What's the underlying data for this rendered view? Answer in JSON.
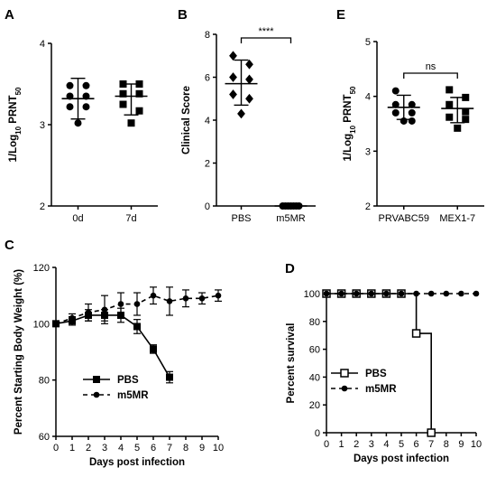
{
  "chart_data": [
    {
      "panel": "A",
      "type": "scatter",
      "categories": [
        "0d",
        "7d"
      ],
      "ylabel": "1/Log10 PRNT50",
      "ylim": [
        2,
        4
      ],
      "yticks": [
        "2",
        "3",
        "4"
      ],
      "series": [
        {
          "category": "0d",
          "values": [
            3.48,
            3.48,
            3.35,
            3.35,
            3.22,
            3.22,
            3.02
          ],
          "mean": 3.32,
          "err_low": 3.07,
          "err_high": 3.57,
          "marker": "circle"
        },
        {
          "category": "7d",
          "values": [
            3.5,
            3.5,
            3.38,
            3.38,
            3.25,
            3.17,
            3.02
          ],
          "mean": 3.35,
          "err_low": 3.12,
          "err_high": 3.5,
          "marker": "square"
        }
      ]
    },
    {
      "panel": "B",
      "type": "scatter",
      "categories": [
        "PBS",
        "m5MR"
      ],
      "ylabel": "Clinical Score",
      "ylim": [
        0,
        8
      ],
      "yticks": [
        "0",
        "2",
        "4",
        "6",
        "8"
      ],
      "significance": "****",
      "series": [
        {
          "category": "PBS",
          "values": [
            7.0,
            6.6,
            6.0,
            5.9,
            5.2,
            5.0,
            4.3
          ],
          "mean": 5.7,
          "err_low": 4.7,
          "err_high": 6.8,
          "marker": "diamond"
        },
        {
          "category": "m5MR",
          "values": [
            0,
            0,
            0,
            0,
            0,
            0,
            0
          ],
          "mean": 0,
          "err_low": 0,
          "err_high": 0,
          "marker": "circle"
        }
      ]
    },
    {
      "panel": "E",
      "type": "scatter",
      "categories": [
        "PRVABC59",
        "MEX1-7"
      ],
      "ylabel": "1/Log10 PRNT50",
      "ylim": [
        2,
        5
      ],
      "yticks": [
        "2",
        "3",
        "4",
        "5"
      ],
      "significance": "ns",
      "series": [
        {
          "category": "PRVABC59",
          "values": [
            4.1,
            3.85,
            3.85,
            3.7,
            3.7,
            3.55,
            3.55
          ],
          "mean": 3.8,
          "err_low": 3.58,
          "err_high": 4.02,
          "marker": "circle"
        },
        {
          "category": "MEX1-7",
          "values": [
            4.12,
            3.98,
            3.85,
            3.72,
            3.62,
            3.58,
            3.42
          ],
          "mean": 3.78,
          "err_low": 3.52,
          "err_high": 3.98,
          "marker": "square"
        }
      ]
    },
    {
      "panel": "C",
      "type": "line",
      "xlabel": "Days post infection",
      "ylabel": "Percent Starting Body Weight (%)",
      "xlim": [
        0,
        10
      ],
      "ylim": [
        60,
        120
      ],
      "xticks": [
        "0",
        "1",
        "2",
        "3",
        "4",
        "5",
        "6",
        "7",
        "8",
        "9",
        "10"
      ],
      "yticks": [
        "60",
        "80",
        "100",
        "120"
      ],
      "legend_position": "bottom-left",
      "series": [
        {
          "name": "PBS",
          "x": [
            0,
            1,
            2,
            3,
            4,
            5,
            6,
            7
          ],
          "values": [
            100,
            101,
            103,
            103,
            103,
            99,
            91,
            81
          ],
          "err": [
            1,
            1.5,
            2,
            2,
            2.5,
            2.5,
            1.5,
            2
          ],
          "style": "solid",
          "marker": "square"
        },
        {
          "name": "m5MR",
          "x": [
            0,
            1,
            2,
            3,
            4,
            5,
            6,
            7,
            8,
            9,
            10
          ],
          "values": [
            100,
            102,
            104,
            105,
            107,
            107,
            110,
            108,
            109,
            109,
            110
          ],
          "err": [
            1,
            1.5,
            3,
            5,
            4,
            4,
            3,
            5,
            3,
            2,
            2
          ],
          "style": "dashed",
          "marker": "circle"
        }
      ]
    },
    {
      "panel": "D",
      "type": "line",
      "xlabel": "Days post infection",
      "ylabel": "Percent survival",
      "xlim": [
        0,
        10
      ],
      "ylim": [
        0,
        100
      ],
      "xticks": [
        "0",
        "1",
        "2",
        "3",
        "4",
        "5",
        "6",
        "7",
        "8",
        "9",
        "10"
      ],
      "yticks": [
        "0",
        "20",
        "40",
        "60",
        "80",
        "100"
      ],
      "legend_position": "bottom-left",
      "series": [
        {
          "name": "PBS",
          "x": [
            0,
            1,
            2,
            3,
            4,
            5,
            6,
            7
          ],
          "values": [
            100,
            100,
            100,
            100,
            100,
            100,
            71.4,
            0
          ],
          "style": "step-solid",
          "marker": "open-square"
        },
        {
          "name": "m5MR",
          "x": [
            0,
            1,
            2,
            3,
            4,
            5,
            6,
            7,
            8,
            9,
            10
          ],
          "values": [
            100,
            100,
            100,
            100,
            100,
            100,
            100,
            100,
            100,
            100,
            100
          ],
          "style": "dashed",
          "marker": "circle"
        }
      ]
    }
  ]
}
